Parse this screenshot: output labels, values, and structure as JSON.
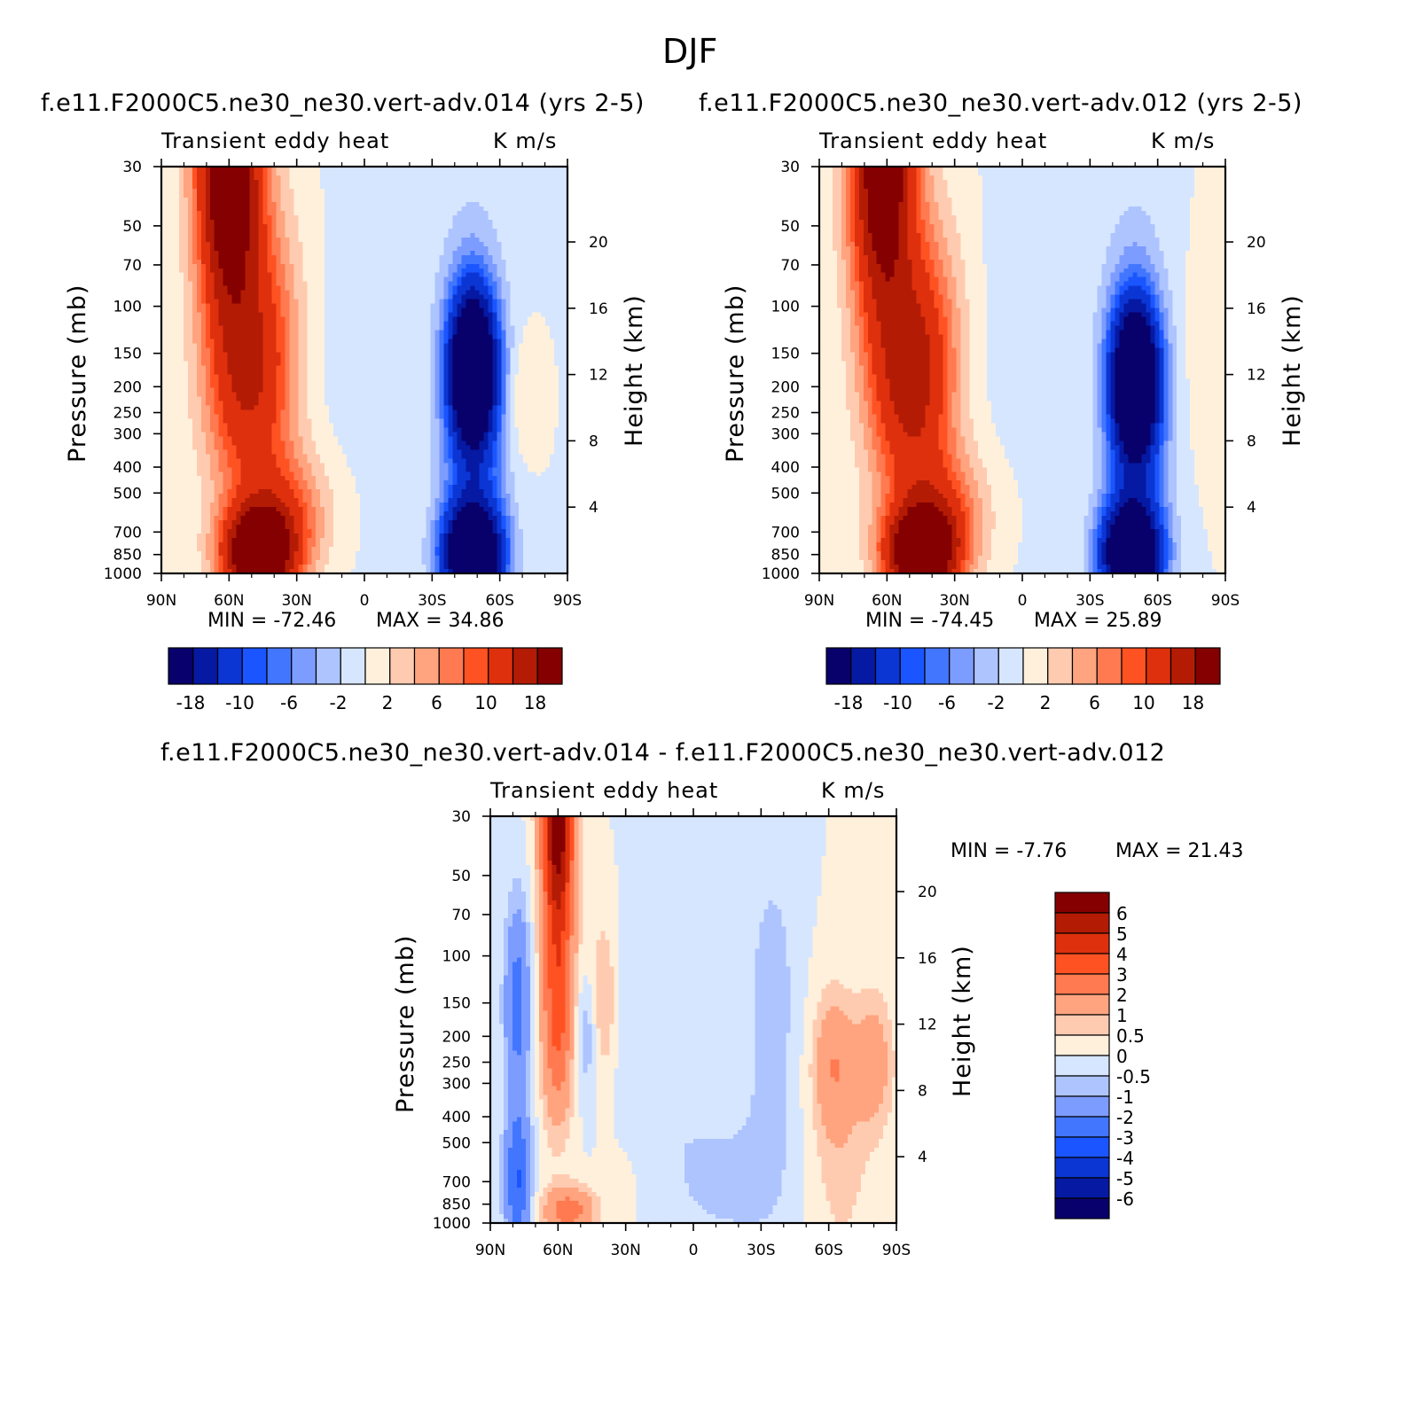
{
  "figure": {
    "title": "DJF"
  },
  "panels": [
    {
      "title": "f.e11.F2000C5.ne30_ne30.vert-adv.014 (yrs 2-5)",
      "variable": "Transient eddy heat",
      "units": "K m/s",
      "ylabel": "Pressure (mb)",
      "ylabel_right": "Height (km)",
      "min_text": "MIN = -72.46",
      "max_text": "MAX = 34.86"
    },
    {
      "title": "f.e11.F2000C5.ne30_ne30.vert-adv.012 (yrs 2-5)",
      "variable": "Transient eddy heat",
      "units": "K m/s",
      "ylabel": "Pressure (mb)",
      "ylabel_right": "Height (km)",
      "min_text": "MIN = -74.45",
      "max_text": "MAX = 25.89"
    },
    {
      "title": "f.e11.F2000C5.ne30_ne30.vert-adv.014 - f.e11.F2000C5.ne30_ne30.vert-adv.012",
      "variable": "Transient eddy heat",
      "units": "K m/s",
      "ylabel": "Pressure (mb)",
      "ylabel_right": "Height (km)",
      "min_text": "MIN = -7.76",
      "max_text": "MAX = 21.43"
    }
  ],
  "colors": {
    "blues": [
      "#08006b",
      "#0519a3",
      "#0b36d4",
      "#1b55ff",
      "#4276ff",
      "#7d9cff",
      "#aec4ff",
      "#d6e6ff"
    ],
    "reds": [
      "#fff0dc",
      "#ffcbb0",
      "#ffa47f",
      "#ff7a50",
      "#ff5223",
      "#de300d",
      "#b31b05",
      "#850000"
    ]
  },
  "chart_data": [
    {
      "type": "heatmap",
      "title": "f.e11.F2000C5.ne30_ne30.vert-adv.014 (yrs 2-5)",
      "xlabel": "",
      "ylabel": "Pressure (mb)",
      "x_ticks": [
        "90N",
        "60N",
        "30N",
        "0",
        "30S",
        "60S",
        "90S"
      ],
      "y_ticks": [
        30,
        50,
        70,
        100,
        150,
        200,
        250,
        300,
        400,
        500,
        700,
        850,
        1000
      ],
      "y_right_label": "Height (km)",
      "y_right_ticks": [
        4,
        8,
        12,
        16,
        20
      ],
      "y_scale": "log",
      "ylim": [
        1000,
        30
      ],
      "xlim": [
        90,
        -90
      ],
      "colorbar_ticks": [
        "-18",
        "-10",
        "-6",
        "-2",
        "2",
        "6",
        "10",
        "18"
      ],
      "min": -72.46,
      "max": 34.86,
      "features": [
        {
          "type": "max",
          "lat": 60,
          "p": 30,
          "value": 18
        },
        {
          "type": "max",
          "lat": 47,
          "p": 850,
          "value": 18
        },
        {
          "type": "min",
          "lat": -50,
          "p": 180,
          "value": -18
        },
        {
          "type": "min",
          "lat": -48,
          "p": 850,
          "value": -18
        }
      ]
    },
    {
      "type": "heatmap",
      "title": "f.e11.F2000C5.ne30_ne30.vert-adv.012 (yrs 2-5)",
      "xlabel": "",
      "ylabel": "Pressure (mb)",
      "x_ticks": [
        "90N",
        "60N",
        "30N",
        "0",
        "30S",
        "60S",
        "90S"
      ],
      "y_ticks": [
        30,
        50,
        70,
        100,
        150,
        200,
        250,
        300,
        400,
        500,
        700,
        850,
        1000
      ],
      "y_right_label": "Height (km)",
      "y_right_ticks": [
        4,
        8,
        12,
        16,
        20
      ],
      "y_scale": "log",
      "ylim": [
        1000,
        30
      ],
      "xlim": [
        90,
        -90
      ],
      "colorbar_ticks": [
        "-18",
        "-10",
        "-6",
        "-2",
        "2",
        "6",
        "10",
        "18"
      ],
      "min": -74.45,
      "max": 25.89,
      "features": [
        {
          "type": "max",
          "lat": 62,
          "p": 30,
          "value": 18
        },
        {
          "type": "max",
          "lat": 45,
          "p": 850,
          "value": 18
        },
        {
          "type": "min",
          "lat": -50,
          "p": 190,
          "value": -18
        },
        {
          "type": "min",
          "lat": -48,
          "p": 850,
          "value": -18
        }
      ]
    },
    {
      "type": "heatmap",
      "title": "f.e11.F2000C5.ne30_ne30.vert-adv.014 - f.e11.F2000C5.ne30_ne30.vert-adv.012",
      "xlabel": "",
      "ylabel": "Pressure (mb)",
      "x_ticks": [
        "90N",
        "60N",
        "30N",
        "0",
        "30S",
        "60S",
        "90S"
      ],
      "y_ticks": [
        30,
        50,
        70,
        100,
        150,
        200,
        250,
        300,
        400,
        500,
        700,
        850,
        1000
      ],
      "y_right_label": "Height (km)",
      "y_right_ticks": [
        4,
        8,
        12,
        16,
        20
      ],
      "y_scale": "log",
      "ylim": [
        1000,
        30
      ],
      "xlim": [
        90,
        -90
      ],
      "colorbar_ticks": [
        "6",
        "5",
        "4",
        "3",
        "2",
        "1",
        "0.5",
        "0",
        "-0.5",
        "-1",
        "-2",
        "-3",
        "-4",
        "-5",
        "-6"
      ],
      "min": -7.76,
      "max": 21.43,
      "features": [
        {
          "type": "max",
          "lat": 60,
          "p": 30,
          "value": 6
        },
        {
          "type": "min",
          "lat": 75,
          "p": 800,
          "value": -4
        }
      ]
    }
  ]
}
